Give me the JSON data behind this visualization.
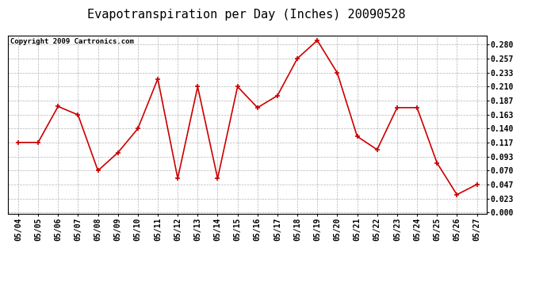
{
  "title": "Evapotranspiration per Day (Inches) 20090528",
  "copyright": "Copyright 2009 Cartronics.com",
  "dates": [
    "05/04",
    "05/05",
    "05/06",
    "05/07",
    "05/08",
    "05/09",
    "05/10",
    "05/11",
    "05/12",
    "05/13",
    "05/14",
    "05/15",
    "05/16",
    "05/17",
    "05/18",
    "05/19",
    "05/20",
    "05/21",
    "05/22",
    "05/23",
    "05/24",
    "05/25",
    "05/26",
    "05/27"
  ],
  "values": [
    0.117,
    0.117,
    0.177,
    0.163,
    0.07,
    0.1,
    0.14,
    0.223,
    0.057,
    0.21,
    0.057,
    0.21,
    0.175,
    0.195,
    0.257,
    0.287,
    0.233,
    0.127,
    0.105,
    0.175,
    0.175,
    0.083,
    0.03,
    0.047
  ],
  "line_color": "#cc0000",
  "marker_color": "#cc0000",
  "bg_color": "#ffffff",
  "plot_bg_color": "#ffffff",
  "grid_color": "#aaaaaa",
  "yticks": [
    0.0,
    0.023,
    0.047,
    0.07,
    0.093,
    0.117,
    0.14,
    0.163,
    0.187,
    0.21,
    0.233,
    0.257,
    0.28
  ],
  "ylim": [
    -0.002,
    0.295
  ],
  "title_fontsize": 11,
  "tick_fontsize": 7,
  "copyright_fontsize": 6.5
}
